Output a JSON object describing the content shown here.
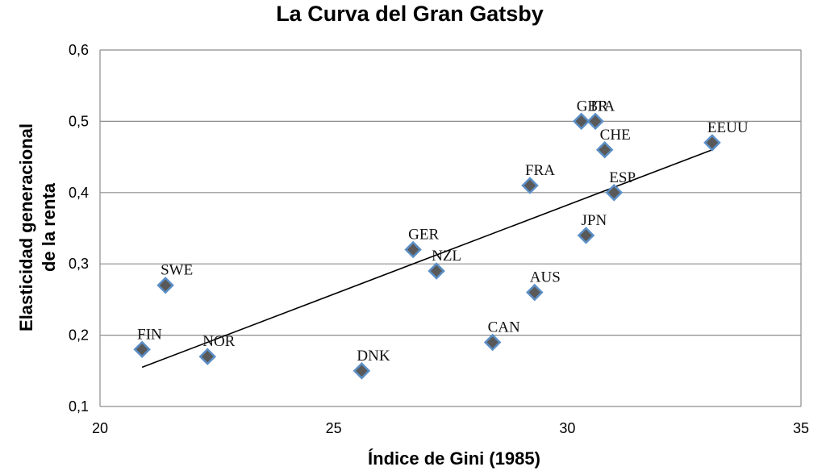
{
  "chart_data": {
    "type": "scatter",
    "title": "La Curva del Gran Gatsby",
    "xlabel": "Índice de Gini (1985)",
    "ylabel_lines": [
      "Elasticidad  generacional",
      "de la renta"
    ],
    "xlim": [
      20,
      35
    ],
    "ylim": [
      0.1,
      0.6
    ],
    "x_ticks": [
      20,
      25,
      30,
      35
    ],
    "x_tick_labels": [
      "20",
      "25",
      "30",
      "35"
    ],
    "y_ticks": [
      0.1,
      0.2,
      0.3,
      0.4,
      0.5,
      0.6
    ],
    "y_tick_labels": [
      "0,1",
      "0,2",
      "0,3",
      "0,4",
      "0,5",
      "0,6"
    ],
    "grid": "horizontal",
    "marker": "diamond",
    "colors": {
      "marker_fill": "#595959",
      "marker_edge": "#5b8fc7",
      "grid": "#8c8c8c",
      "trend": "#000000"
    },
    "points": [
      {
        "label": "FIN",
        "x": 20.9,
        "y": 0.18
      },
      {
        "label": "SWE",
        "x": 21.4,
        "y": 0.27
      },
      {
        "label": "NOR",
        "x": 22.3,
        "y": 0.17
      },
      {
        "label": "DNK",
        "x": 25.6,
        "y": 0.15
      },
      {
        "label": "GER",
        "x": 26.7,
        "y": 0.32
      },
      {
        "label": "NZL",
        "x": 27.2,
        "y": 0.29
      },
      {
        "label": "CAN",
        "x": 28.4,
        "y": 0.19
      },
      {
        "label": "FRA",
        "x": 29.2,
        "y": 0.41
      },
      {
        "label": "AUS",
        "x": 29.3,
        "y": 0.26
      },
      {
        "label": "GBR",
        "x": 30.3,
        "y": 0.5
      },
      {
        "label": "JPN",
        "x": 30.4,
        "y": 0.34
      },
      {
        "label": "ITA",
        "x": 30.6,
        "y": 0.5
      },
      {
        "label": "CHE",
        "x": 30.8,
        "y": 0.46
      },
      {
        "label": "ESP",
        "x": 31.0,
        "y": 0.4
      },
      {
        "label": "EEUU",
        "x": 33.1,
        "y": 0.47
      }
    ],
    "trendline": {
      "x": [
        20.9,
        33.1
      ],
      "y": [
        0.155,
        0.46
      ]
    }
  }
}
